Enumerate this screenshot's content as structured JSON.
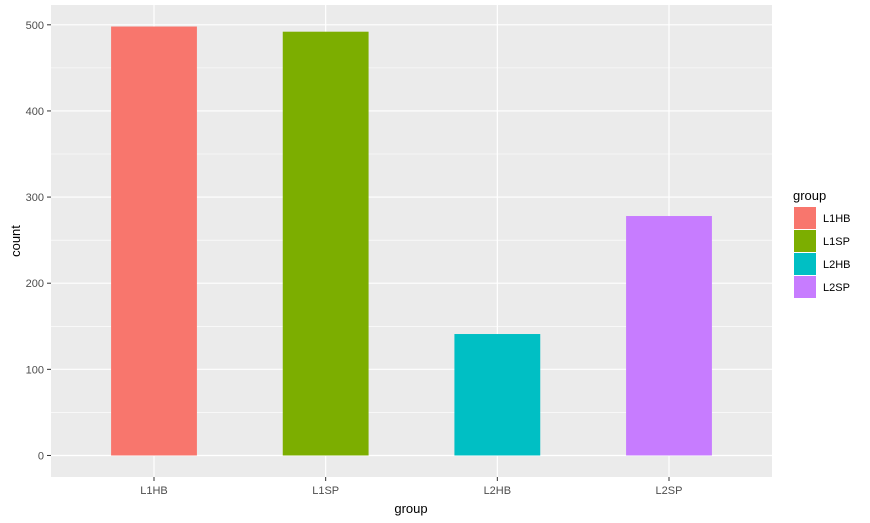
{
  "chart_data": {
    "type": "bar",
    "categories": [
      "L1HB",
      "L1SP",
      "L2HB",
      "L2SP"
    ],
    "values": [
      498,
      492,
      141,
      278
    ],
    "colors": [
      "#F8766D",
      "#7CAE00",
      "#00BFC4",
      "#C77CFF"
    ],
    "xlabel": "group",
    "ylabel": "count",
    "ylim": [
      -25,
      523
    ],
    "yticks": [
      0,
      100,
      200,
      300,
      400,
      500
    ],
    "ytick_labels": [
      "0",
      "100",
      "200",
      "300",
      "400",
      "500"
    ],
    "grid": true,
    "panel_background": "#EBEBEB",
    "grid_color": "#FFFFFF",
    "legend": {
      "title": "group",
      "position": "right",
      "entries": [
        "L1HB",
        "L1SP",
        "L2HB",
        "L2SP"
      ]
    }
  }
}
